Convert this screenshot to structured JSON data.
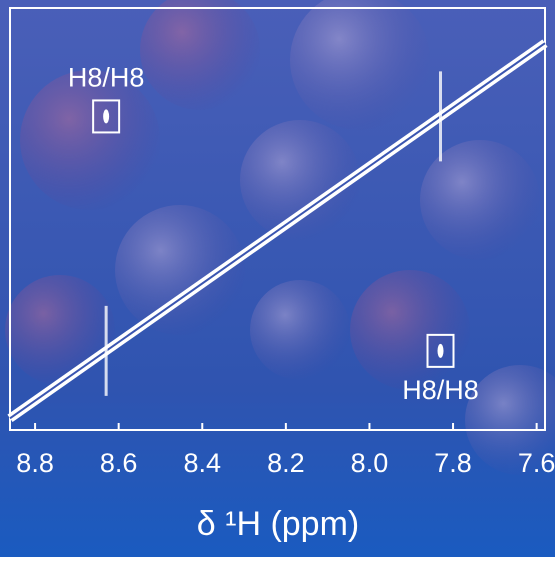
{
  "chart_data": {
    "type": "contour",
    "annotations": [
      "H8/H8",
      "H8/H8"
    ],
    "xlabel": "δ ¹H (ppm)",
    "xlim": [
      8.86,
      7.58
    ],
    "ylim": [
      8.9,
      7.46
    ],
    "xticks": [
      8.8,
      8.6,
      8.4,
      8.2,
      {
        "value": 8.0,
        "label": "8.0"
      },
      7.8,
      7.6
    ],
    "x": [
      8.63,
      7.83
    ],
    "y": [
      7.83,
      8.63
    ],
    "color": "#ffffff"
  }
}
